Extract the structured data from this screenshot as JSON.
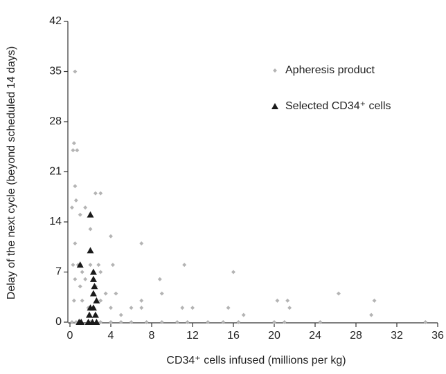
{
  "chart_data": {
    "type": "scatter",
    "xlabel": "CD34⁺ cells infused (millions per kg)",
    "ylabel": "Delay of the next cycle (beyond scheduled 14 days)",
    "xlim": [
      0,
      36
    ],
    "xticks": [
      0,
      4,
      8,
      12,
      16,
      20,
      24,
      28,
      32,
      36
    ],
    "ylim": [
      0,
      42
    ],
    "yticks": [
      0,
      7,
      14,
      21,
      28,
      35,
      42
    ],
    "grid": false,
    "legend": "upper right",
    "series": [
      {
        "name": "Apheresis product",
        "color": "#b4b4b4",
        "marker": "diamond",
        "x": [
          0.5,
          0.4,
          0.3,
          0.7,
          0.5,
          0.6,
          0.2,
          1.5,
          2.5,
          3.0,
          1.0,
          2.0,
          0.5,
          4.0,
          7.0,
          0.3,
          0.8,
          1.2,
          1.5,
          2.0,
          2.8,
          3.0,
          4.2,
          0.5,
          1.0,
          2.5,
          3.5,
          4.5,
          8.8,
          9.0,
          11.2,
          16.0,
          0.4,
          1.2,
          1.8,
          3.0,
          4.0,
          5.0,
          6.0,
          7.0,
          7.0,
          11.0,
          12.0,
          15.5,
          17.0,
          20.3,
          21.3,
          21.5,
          26.3,
          29.8,
          29.5,
          0.2,
          0.6,
          1.0,
          2.0,
          3.0,
          4.0,
          5.0,
          6.0,
          7.5,
          9.0,
          10.5,
          11.5,
          13.5,
          15.0,
          16.5,
          20.0,
          21.0,
          24.5,
          34.8
        ],
        "values": [
          35,
          25,
          24,
          24,
          19,
          17,
          16,
          16,
          18,
          18,
          15,
          13,
          11,
          12,
          11,
          8,
          8,
          7,
          6,
          8,
          8,
          7,
          8,
          6,
          5,
          5,
          4,
          4,
          6,
          4,
          8,
          7,
          3,
          3,
          2,
          3,
          2,
          1,
          2,
          2,
          3,
          2,
          2,
          2,
          1,
          3,
          3,
          2,
          4,
          3,
          1,
          0,
          0,
          0,
          0,
          0,
          0,
          0,
          0,
          0,
          0,
          0,
          0,
          0,
          0,
          0,
          0,
          0,
          0,
          0
        ]
      },
      {
        "name": "Selected CD34⁺ cells",
        "color": "#1a1a1a",
        "marker": "triangle",
        "x": [
          2.0,
          2.0,
          1.0,
          2.3,
          2.3,
          2.4,
          2.3,
          2.6,
          2.3,
          2.0,
          1.9,
          2.5,
          0.9,
          1.1,
          1.8,
          2.2,
          2.6
        ],
        "values": [
          15,
          10,
          8,
          7,
          6,
          5,
          4,
          3,
          2,
          2,
          1,
          1,
          0,
          0,
          0,
          0,
          0
        ]
      }
    ]
  }
}
